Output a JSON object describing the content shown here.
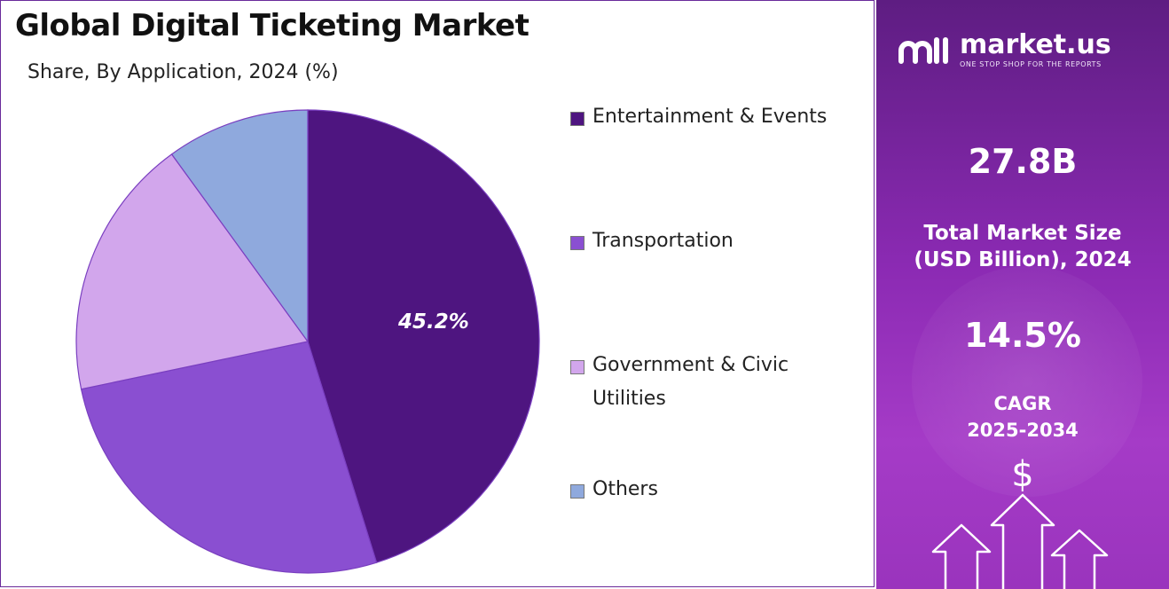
{
  "title": "Global Digital Ticketing Market",
  "subtitle": "Share, By Application, 2024 (%)",
  "chart_data": {
    "type": "pie",
    "title": "Global Digital Ticketing Market",
    "subtitle": "Share, By Application, 2024 (%)",
    "categories": [
      "Entertainment & Events",
      "Transportation",
      "Government & Civic Utilities",
      "Others"
    ],
    "values": [
      45.2,
      26.5,
      18.3,
      10.0
    ],
    "colors": [
      "#4e1580",
      "#8a4fd1",
      "#d2a6ec",
      "#8fa9dd"
    ],
    "data_labels": [
      "45.2%",
      "",
      "",
      ""
    ],
    "legend_position": "right",
    "start_angle": "12 o'clock",
    "direction": "clockwise"
  },
  "legend": {
    "items": [
      {
        "label": "Entertainment & Events",
        "color": "#4e1580"
      },
      {
        "label": "Transportation",
        "color": "#8a4fd1"
      },
      {
        "label": "Government & Civic Utilities",
        "color": "#d2a6ec"
      },
      {
        "label": "Others",
        "color": "#8fa9dd"
      }
    ]
  },
  "sidebar": {
    "brand_name": "market.us",
    "brand_tagline": "ONE STOP SHOP FOR THE REPORTS",
    "market_size_value": "27.8B",
    "market_size_label_line1": "Total Market Size",
    "market_size_label_line2": "(USD Billion), 2024",
    "cagr_value": "14.5%",
    "cagr_label_line1": "CAGR",
    "cagr_label_line2": "2025-2034",
    "dollar_symbol": "$",
    "logo_icon": "market-us-logo-icon",
    "arrows_icon": "growth-arrows-icon",
    "background_color": "#8b2ab3"
  }
}
